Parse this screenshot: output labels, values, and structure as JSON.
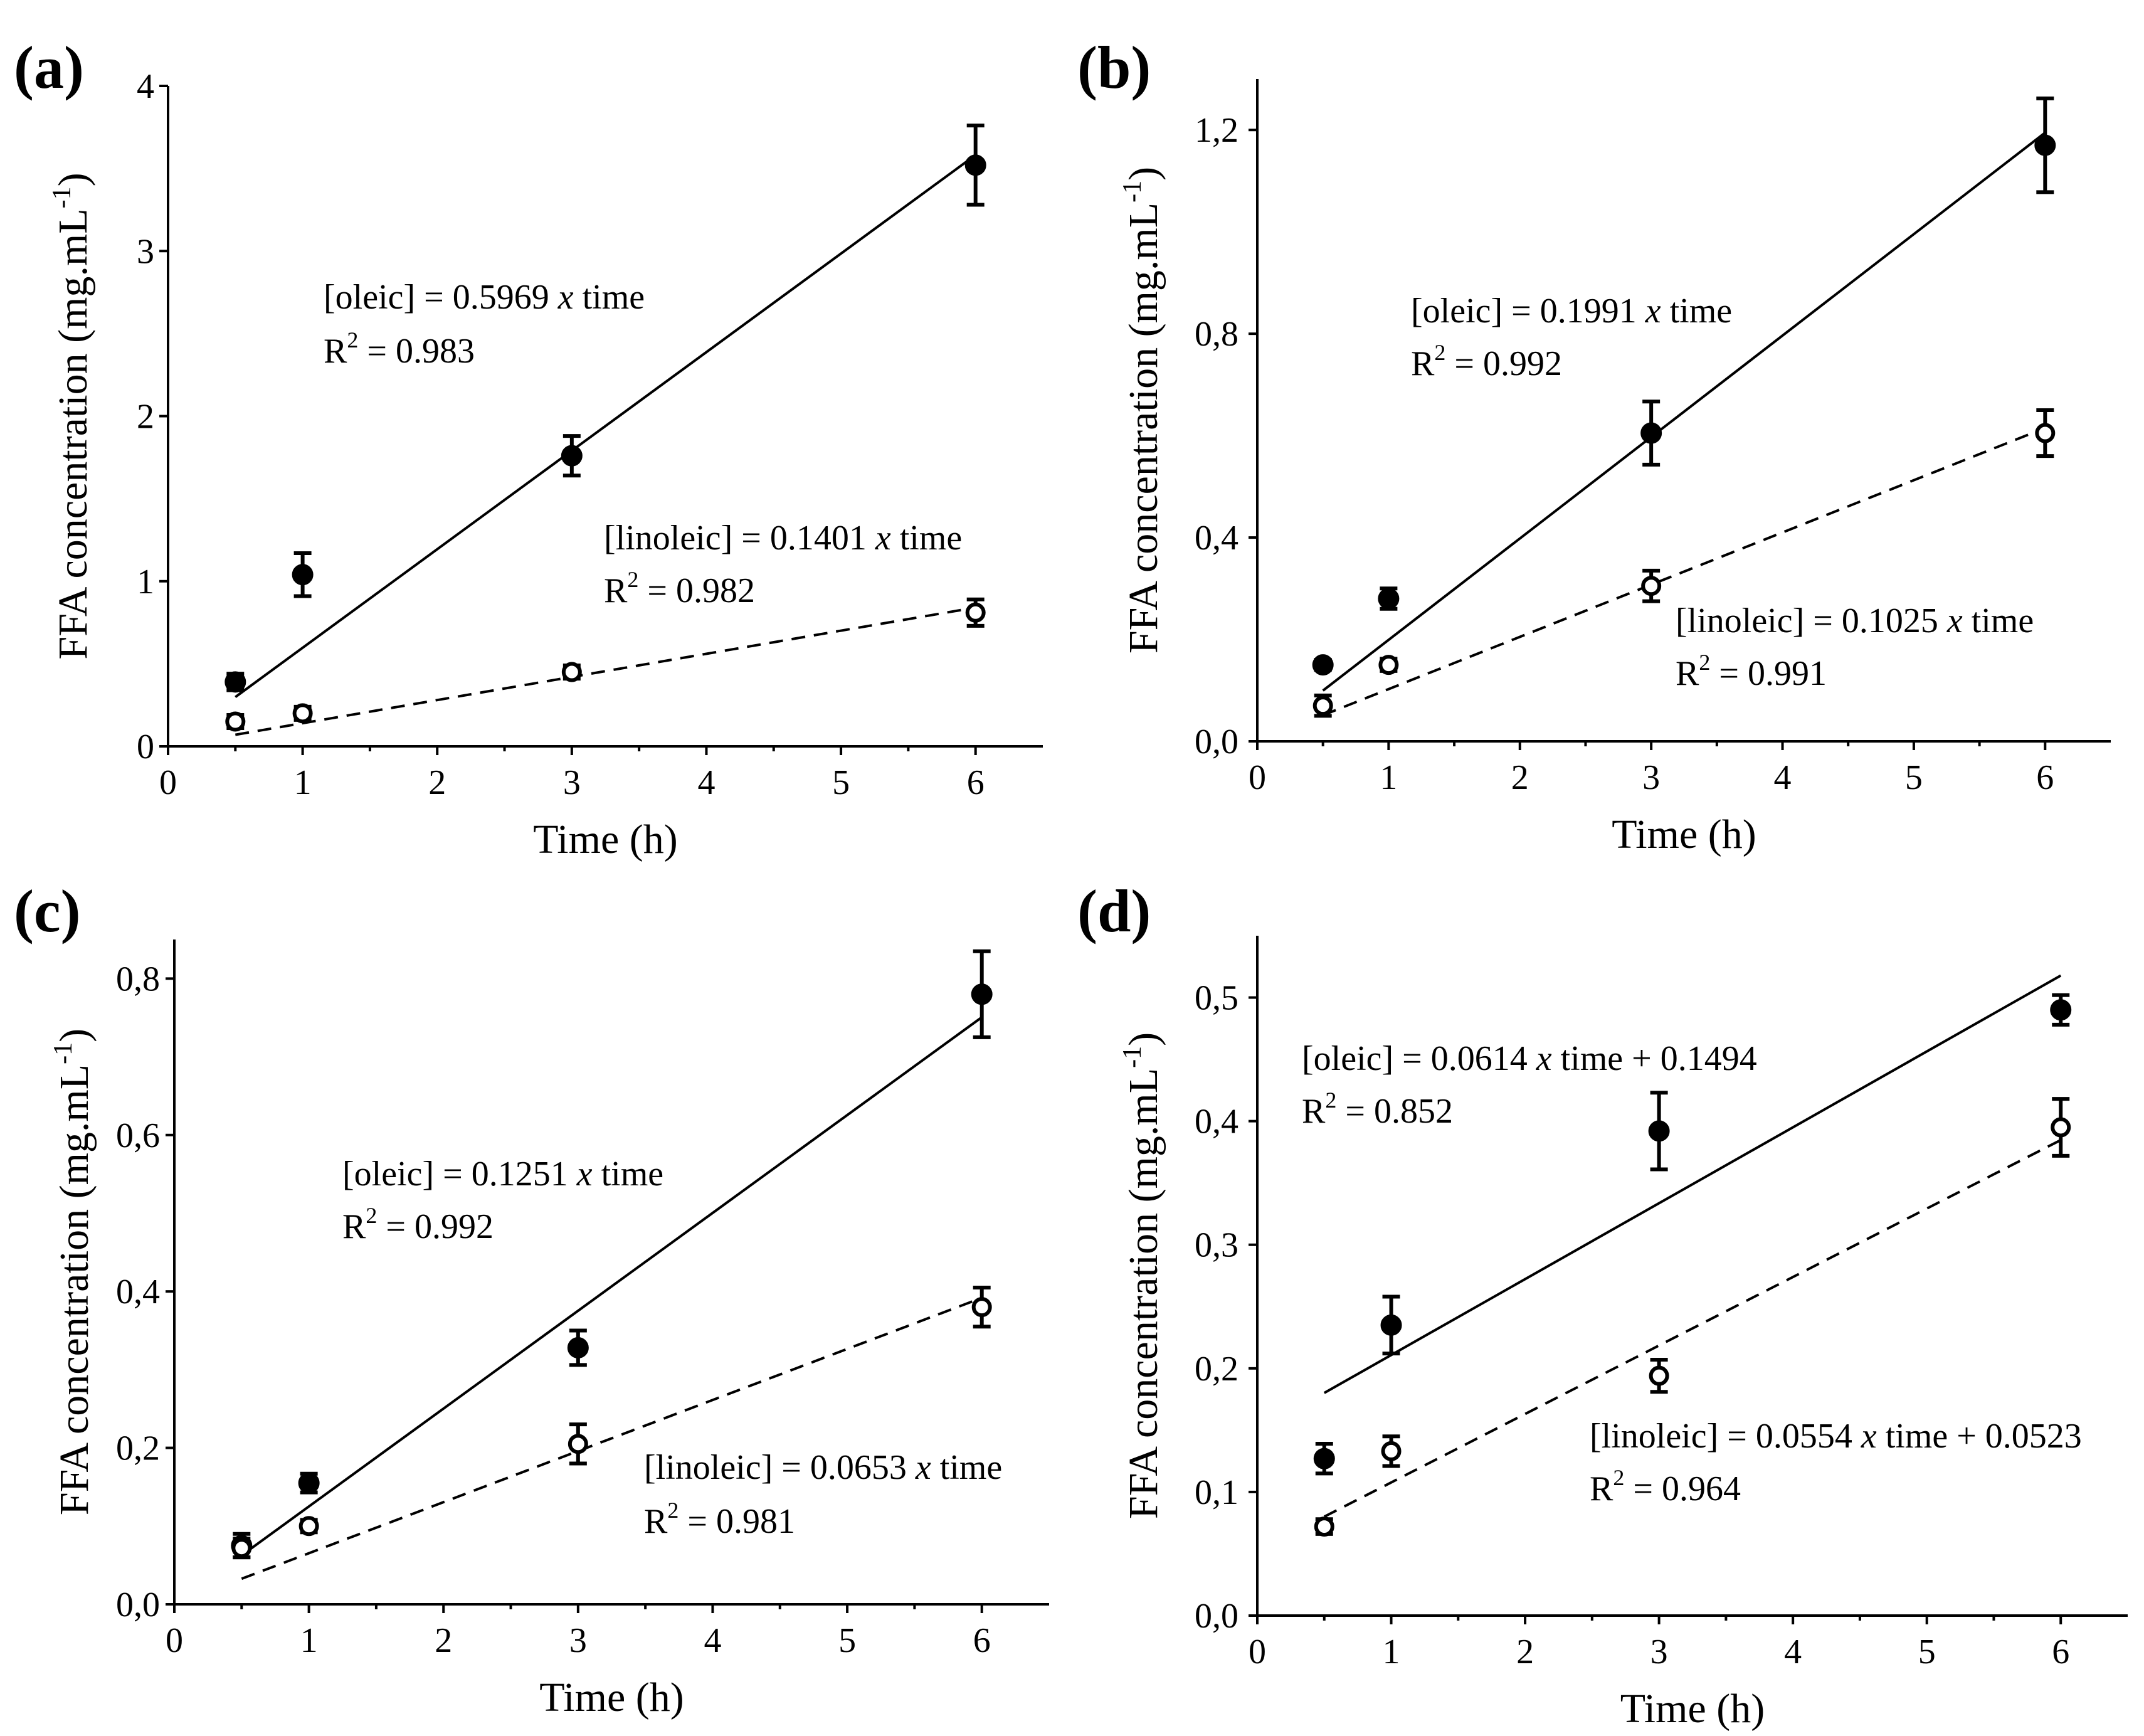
{
  "chart_data": [
    {
      "type": "scatter",
      "panel_label": "(a)",
      "xlabel": "Time (h)",
      "ylabel": "FFA concentration (mg.mL",
      "ylabel_sup": "-1",
      "ylabel_close": ")",
      "xlim": [
        0,
        6.5
      ],
      "ylim": [
        0,
        4
      ],
      "xticks": [
        0,
        1,
        2,
        3,
        4,
        5,
        6
      ],
      "xtick_labels": [
        "0",
        "1",
        "2",
        "3",
        "4",
        "5",
        "6"
      ],
      "yticks": [
        0,
        1,
        2,
        3,
        4
      ],
      "ytick_labels": [
        "0",
        "1",
        "2",
        "3",
        "4"
      ],
      "series": [
        {
          "name": "oleic",
          "marker": "filled",
          "x": [
            0.5,
            1,
            3,
            6
          ],
          "y": [
            0.39,
            1.04,
            1.76,
            3.52
          ],
          "err": [
            0.05,
            0.13,
            0.12,
            0.24
          ],
          "fit_slope": 0.5969,
          "fit_intercept": 0,
          "fit_style": "solid"
        },
        {
          "name": "linoleic",
          "marker": "open",
          "x": [
            0.5,
            1,
            3,
            6
          ],
          "y": [
            0.15,
            0.2,
            0.45,
            0.81
          ],
          "err": [
            0.04,
            0.04,
            0.04,
            0.08
          ],
          "fit_slope": 0.1401,
          "fit_intercept": 0,
          "fit_style": "dashed"
        }
      ],
      "annotations": [
        {
          "line1_a": "[oleic] = 0.5969 ",
          "line1_i": "x",
          "line1_b": " time",
          "line2_a": "R",
          "line2_sup": "2",
          "line2_b": " = 0.983"
        },
        {
          "line1_a": "[linoleic] = 0.1401 ",
          "line1_i": "x",
          "line1_b": " time",
          "line2_a": "R",
          "line2_sup": "2",
          "line2_b": " = 0.982"
        }
      ]
    },
    {
      "type": "scatter",
      "panel_label": "(b)",
      "xlabel": "Time (h)",
      "ylabel": "FFA concentration (mg.mL",
      "ylabel_sup": "-1",
      "ylabel_close": ")",
      "xlim": [
        0,
        6.5
      ],
      "ylim": [
        0,
        1.3
      ],
      "xticks": [
        0,
        1,
        2,
        3,
        4,
        5,
        6
      ],
      "xtick_labels": [
        "0",
        "1",
        "2",
        "3",
        "4",
        "5",
        "6"
      ],
      "yticks": [
        0,
        0.4,
        0.8,
        1.2
      ],
      "ytick_labels": [
        "0,0",
        "0,4",
        "0,8",
        "1,2"
      ],
      "series": [
        {
          "name": "oleic",
          "marker": "filled",
          "x": [
            0.5,
            1,
            3,
            6
          ],
          "y": [
            0.15,
            0.28,
            0.605,
            1.17
          ],
          "err": [
            0.01,
            0.02,
            0.062,
            0.092
          ],
          "fit_slope": 0.1991,
          "fit_intercept": 0,
          "fit_style": "solid"
        },
        {
          "name": "linoleic",
          "marker": "open",
          "x": [
            0.5,
            1,
            3,
            6
          ],
          "y": [
            0.07,
            0.15,
            0.305,
            0.605
          ],
          "err": [
            0.02,
            0.012,
            0.03,
            0.045
          ],
          "fit_slope": 0.1025,
          "fit_intercept": 0,
          "fit_style": "dashed"
        }
      ],
      "annotations": [
        {
          "line1_a": "[oleic] = 0.1991 ",
          "line1_i": "x",
          "line1_b": " time",
          "line2_a": "R",
          "line2_sup": "2",
          "line2_b": " = 0.992"
        },
        {
          "line1_a": "[linoleic] = 0.1025 ",
          "line1_i": "x",
          "line1_b": " time",
          "line2_a": "R",
          "line2_sup": "2",
          "line2_b": " = 0.991"
        }
      ]
    },
    {
      "type": "scatter",
      "panel_label": "(c)",
      "xlabel": "Time (h)",
      "ylabel": "FFA concentration (mg.mL",
      "ylabel_sup": "-1",
      "ylabel_close": ")",
      "xlim": [
        0,
        6.5
      ],
      "ylim": [
        0,
        0.85
      ],
      "xticks": [
        0,
        1,
        2,
        3,
        4,
        5,
        6
      ],
      "xtick_labels": [
        "0",
        "1",
        "2",
        "3",
        "4",
        "5",
        "6"
      ],
      "yticks": [
        0,
        0.2,
        0.4,
        0.6,
        0.8
      ],
      "ytick_labels": [
        "0,0",
        "0,2",
        "0,4",
        "0,6",
        "0,8"
      ],
      "series": [
        {
          "name": "oleic",
          "marker": "filled",
          "x": [
            0.5,
            1,
            3,
            6
          ],
          "y": [
            0.075,
            0.155,
            0.328,
            0.78
          ],
          "err": [
            0.015,
            0.012,
            0.022,
            0.055
          ],
          "fit_slope": 0.1251,
          "fit_intercept": 0,
          "fit_style": "solid"
        },
        {
          "name": "linoleic",
          "marker": "open",
          "x": [
            0.5,
            1,
            3,
            6
          ],
          "y": [
            0.072,
            0.1,
            0.205,
            0.38
          ],
          "err": [
            0.012,
            0.008,
            0.025,
            0.025
          ],
          "fit_slope": 0.0653,
          "fit_intercept": 0,
          "fit_style": "dashed"
        }
      ],
      "annotations": [
        {
          "line1_a": "[oleic] = 0.1251 ",
          "line1_i": "x",
          "line1_b": " time",
          "line2_a": "R",
          "line2_sup": "2",
          "line2_b": " = 0.992"
        },
        {
          "line1_a": "[linoleic] = 0.0653 ",
          "line1_i": "x",
          "line1_b": " time",
          "line2_a": "R",
          "line2_sup": "2",
          "line2_b": " = 0.981"
        }
      ]
    },
    {
      "type": "scatter",
      "panel_label": "(d)",
      "xlabel": "Time (h)",
      "ylabel": "FFA concentration (mg.mL",
      "ylabel_sup": "-1",
      "ylabel_close": ")",
      "xlim": [
        0,
        6.5
      ],
      "ylim": [
        0,
        0.55
      ],
      "xticks": [
        0,
        1,
        2,
        3,
        4,
        5,
        6
      ],
      "xtick_labels": [
        "0",
        "1",
        "2",
        "3",
        "4",
        "5",
        "6"
      ],
      "yticks": [
        0,
        0.1,
        0.2,
        0.3,
        0.4,
        0.5
      ],
      "ytick_labels": [
        "0,0",
        "0,1",
        "0,2",
        "0,3",
        "0,4",
        "0,5"
      ],
      "series": [
        {
          "name": "oleic",
          "marker": "filled",
          "x": [
            0.5,
            1,
            3,
            6
          ],
          "y": [
            0.127,
            0.235,
            0.392,
            0.49
          ],
          "err": [
            0.012,
            0.023,
            0.031,
            0.012
          ],
          "fit_slope": 0.0614,
          "fit_intercept": 0.1494,
          "fit_style": "solid"
        },
        {
          "name": "linoleic",
          "marker": "open",
          "x": [
            0.5,
            1,
            3,
            6
          ],
          "y": [
            0.072,
            0.133,
            0.194,
            0.395
          ],
          "err": [
            0.006,
            0.012,
            0.013,
            0.023
          ],
          "fit_slope": 0.0554,
          "fit_intercept": 0.0523,
          "fit_style": "dashed"
        }
      ],
      "annotations": [
        {
          "line1_a": "[oleic] = 0.0614 ",
          "line1_i": "x",
          "line1_b": " time + 0.1494",
          "line2_a": "R",
          "line2_sup": "2",
          "line2_b": " = 0.852"
        },
        {
          "line1_a": "[linoleic] = 0.0554 ",
          "line1_i": "x",
          "line1_b": " time + 0.0523",
          "line2_a": "R",
          "line2_sup": "2",
          "line2_b": " = 0.964"
        }
      ]
    }
  ]
}
